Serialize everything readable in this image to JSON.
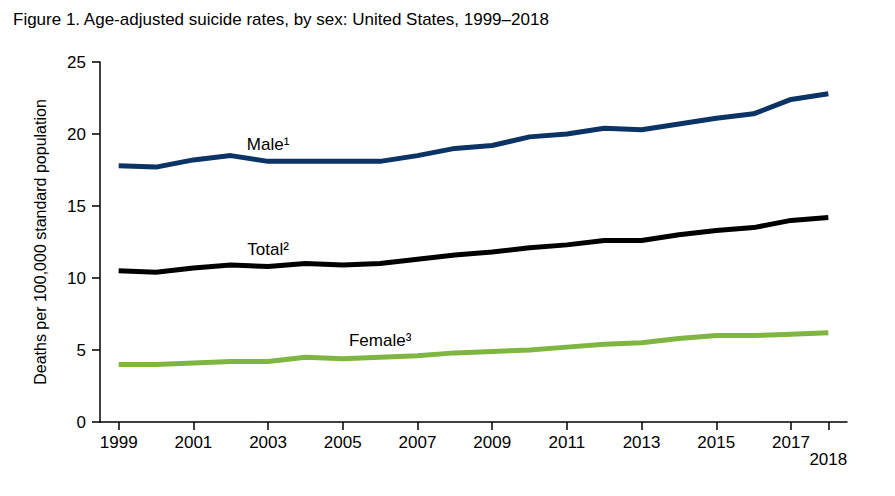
{
  "chart_data": {
    "type": "line",
    "title": "Figure 1. Age-adjusted suicide rates, by sex: United States, 1999–2018",
    "y_label": "Deaths per 100,000 standard population",
    "categories": [
      "1999",
      null,
      "2001",
      null,
      "2003",
      null,
      "2005",
      null,
      "2007",
      null,
      "2009",
      null,
      "2011",
      null,
      "2013",
      null,
      "2015",
      null,
      "2017",
      "2018"
    ],
    "series": [
      {
        "name": "Male¹",
        "color": "#0b3366",
        "values": [
          17.8,
          17.7,
          18.2,
          18.5,
          18.1,
          18.1,
          18.1,
          18.1,
          18.5,
          19.0,
          19.2,
          19.8,
          20.0,
          20.4,
          20.3,
          20.7,
          21.1,
          21.4,
          22.4,
          22.8
        ]
      },
      {
        "name": "Total²",
        "color": "#000000",
        "values": [
          10.5,
          10.4,
          10.7,
          10.9,
          10.8,
          11.0,
          10.9,
          11.0,
          11.3,
          11.6,
          11.8,
          12.1,
          12.3,
          12.6,
          12.6,
          13.0,
          13.3,
          13.5,
          14.0,
          14.2
        ]
      },
      {
        "name": "Female³",
        "color": "#7fb541",
        "values": [
          4.0,
          4.0,
          4.1,
          4.2,
          4.2,
          4.5,
          4.4,
          4.5,
          4.6,
          4.8,
          4.9,
          5.0,
          5.2,
          5.4,
          5.5,
          5.8,
          6.0,
          6.0,
          6.1,
          6.2
        ]
      }
    ],
    "ylim": [
      0,
      25
    ],
    "yticks": [
      0,
      5,
      10,
      15,
      20,
      25
    ],
    "grid": false
  }
}
